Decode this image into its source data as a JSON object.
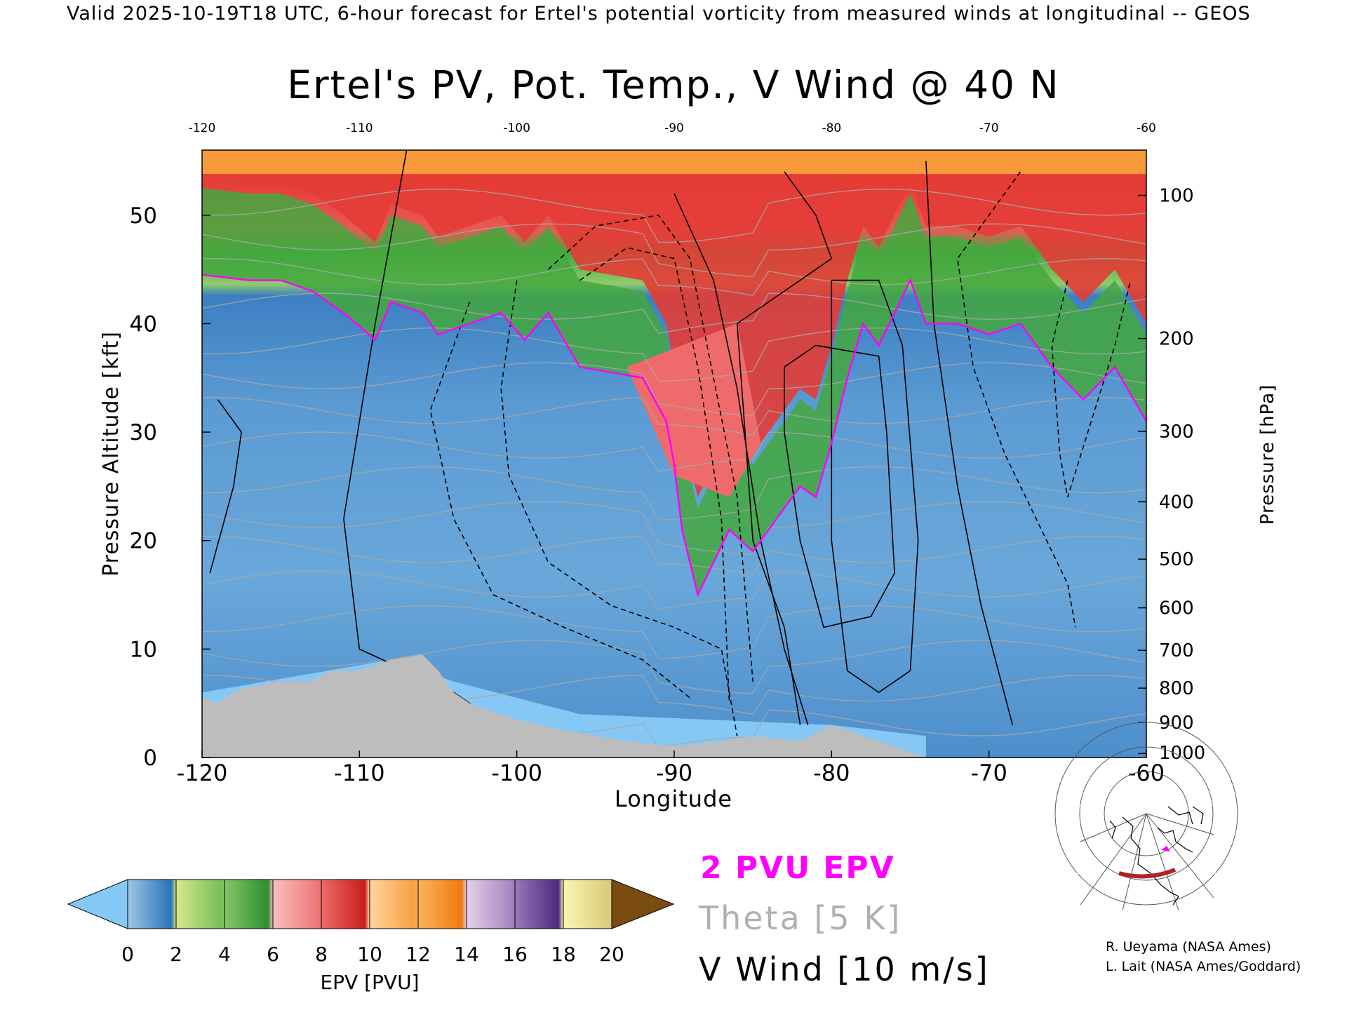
{
  "header": {
    "valid_line": "Valid 2025-10-19T18 UTC, 6-hour forecast for Ertel's potential vorticity from measured winds at longitudinal -- GEOS"
  },
  "chart_data": {
    "type": "heatmap",
    "title": "Ertel's PV, Pot. Temp., V Wind @ 40 N",
    "xlabel": "Longitude",
    "ylabel_left": "Pressure Altitude [kft]",
    "ylabel_right": "Pressure [hPa]",
    "xlim": [
      -120,
      -60
    ],
    "ylim_kft": [
      0,
      56
    ],
    "x_ticks": [
      "-120",
      "-110",
      "-100",
      "-90",
      "-80",
      "-70",
      "-60"
    ],
    "top_x_ticks": [
      "-120",
      "-110",
      "-100",
      "-90",
      "-80",
      "-70",
      "-60"
    ],
    "y_ticks_left": [
      {
        "v": 0,
        "label": "0"
      },
      {
        "v": 10,
        "label": "10"
      },
      {
        "v": 20,
        "label": "20"
      },
      {
        "v": 30,
        "label": "30"
      },
      {
        "v": 40,
        "label": "40"
      },
      {
        "v": 50,
        "label": "50"
      }
    ],
    "y_ticks_right": [
      {
        "hpa": 1000,
        "label": "1000"
      },
      {
        "hpa": 900,
        "label": "900"
      },
      {
        "hpa": 800,
        "label": "800"
      },
      {
        "hpa": 700,
        "label": "700"
      },
      {
        "hpa": 600,
        "label": "600"
      },
      {
        "hpa": 500,
        "label": "500"
      },
      {
        "hpa": 400,
        "label": "400"
      },
      {
        "hpa": 300,
        "label": "300"
      },
      {
        "hpa": 200,
        "label": "200"
      },
      {
        "hpa": 100,
        "label": "100"
      }
    ],
    "pv_tropopause_kft": [
      [
        -120,
        44.5
      ],
      [
        -117,
        44
      ],
      [
        -115,
        44
      ],
      [
        -113,
        43
      ],
      [
        -111,
        41
      ],
      [
        -109,
        38.5
      ],
      [
        -108,
        42
      ],
      [
        -106,
        41
      ],
      [
        -105,
        39
      ],
      [
        -103,
        40
      ],
      [
        -101,
        41
      ],
      [
        -99.5,
        38.5
      ],
      [
        -98,
        41
      ],
      [
        -96,
        36
      ],
      [
        -94,
        35.5
      ],
      [
        -92,
        35
      ],
      [
        -90.5,
        31
      ],
      [
        -90,
        27
      ],
      [
        -89.5,
        21
      ],
      [
        -88.5,
        15
      ],
      [
        -87.5,
        18
      ],
      [
        -86.5,
        21
      ],
      [
        -85,
        19
      ],
      [
        -83.5,
        22
      ],
      [
        -82,
        25
      ],
      [
        -81,
        24
      ],
      [
        -80,
        29
      ],
      [
        -79,
        35
      ],
      [
        -78,
        40
      ],
      [
        -77,
        38
      ],
      [
        -76,
        41
      ],
      [
        -75,
        44
      ],
      [
        -74,
        40
      ],
      [
        -72,
        40
      ],
      [
        -70,
        39
      ],
      [
        -68,
        40
      ],
      [
        -66,
        36
      ],
      [
        -64,
        33
      ],
      [
        -62,
        36
      ],
      [
        -60,
        31
      ]
    ],
    "terrain_kft": [
      [
        -120,
        5.5
      ],
      [
        -119,
        5
      ],
      [
        -118,
        6
      ],
      [
        -117,
        6.5
      ],
      [
        -115,
        7
      ],
      [
        -113,
        7
      ],
      [
        -112,
        8
      ],
      [
        -110,
        8
      ],
      [
        -109,
        8.5
      ],
      [
        -108,
        9
      ],
      [
        -106,
        9.5
      ],
      [
        -105,
        8
      ],
      [
        -104,
        6
      ],
      [
        -103,
        5
      ],
      [
        -101,
        4
      ],
      [
        -100,
        3.5
      ],
      [
        -97,
        2.5
      ],
      [
        -95,
        2
      ],
      [
        -93,
        1.5
      ],
      [
        -90,
        1
      ],
      [
        -87,
        1.5
      ],
      [
        -85,
        2
      ],
      [
        -82,
        1.5
      ],
      [
        -80,
        3
      ],
      [
        -79,
        2.5
      ],
      [
        -78,
        2
      ],
      [
        -76,
        1
      ],
      [
        -74,
        0
      ]
    ],
    "legend": {
      "colorbar_label": "EPV [PVU]",
      "colorbar_ticks": [
        "0",
        "2",
        "4",
        "6",
        "8",
        "10",
        "12",
        "14",
        "16",
        "18",
        "20"
      ],
      "colorbar_colors": [
        "#5d9ed6",
        "#2b72b8",
        "#9ccf72",
        "#3fa03c",
        "#f0a0a0",
        "#d92b2b",
        "#fbb35a",
        "#f58a1a",
        "#c0a0d0",
        "#6a3d9a",
        "#f7ef9a"
      ],
      "under_color": "#86c8f5",
      "over_color": "#7b4c12",
      "pv_line_label": "2 PVU EPV",
      "theta_label": "Theta [5 K]",
      "vwind_label": "V Wind [10 m/s]",
      "pv_line_color": "#ff00ff"
    }
  },
  "credits": {
    "line1": "R. Ueyama (NASA Ames)",
    "line2": "L. Lait (NASA Ames/Goddard)"
  },
  "colors": {
    "stratosphere_red": "#e43c36",
    "orange": "#f8993a",
    "green": "#44a83e",
    "blue": "#4d8fcc",
    "light_blue": "#86c8f5",
    "terrain": "#bdbdbd"
  }
}
